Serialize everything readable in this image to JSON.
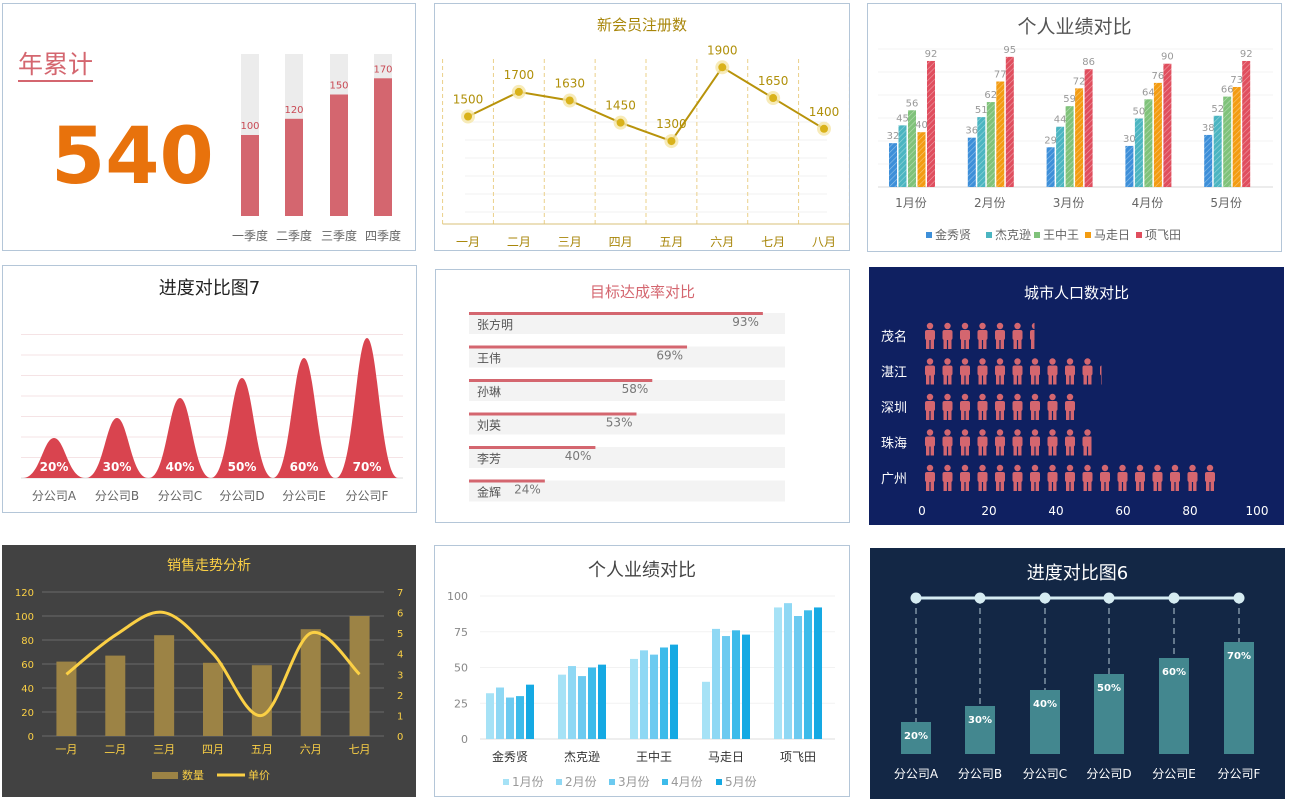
{
  "colors": {
    "dusty_red": "#d4666f",
    "orange_big": "#e8720c",
    "gold_line": "#b8930a",
    "gold_dot": "#d9b21a",
    "red_wave": "#d9444f",
    "navy_bg": "#0f2061",
    "dark_gray_bg": "#424242",
    "gold_bar": "#9c8345",
    "yellow_line": "#fbd045",
    "navy2_bg": "#132745",
    "teal_bar": "#43878f"
  },
  "charts": [
    {
      "id": "annual",
      "title": "年累计",
      "total": "540",
      "chart_data": {
        "type": "bar",
        "categories": [
          "一季度",
          "二季度",
          "三季度",
          "四季度"
        ],
        "values": [
          100,
          120,
          150,
          170
        ],
        "ylim": [
          0,
          200
        ]
      }
    },
    {
      "id": "members",
      "title": "新会员注册数",
      "chart_data": {
        "type": "line",
        "categories": [
          "一月",
          "二月",
          "三月",
          "四月",
          "五月",
          "六月",
          "七月",
          "八月"
        ],
        "values": [
          1500,
          1700,
          1630,
          1450,
          1300,
          1900,
          1650,
          1400
        ],
        "ylim": [
          0,
          2000
        ]
      }
    },
    {
      "id": "perf1",
      "title": "个人业绩对比",
      "chart_data": {
        "type": "bar",
        "categories": [
          "1月份",
          "2月份",
          "3月份",
          "4月份",
          "5月份"
        ],
        "series": [
          {
            "name": "金秀贤",
            "values": [
              32,
              36,
              29,
              30,
              38
            ],
            "color": "#3d8fd9"
          },
          {
            "name": "杰克逊",
            "values": [
              45,
              51,
              44,
              50,
              52
            ],
            "color": "#4bb5c1"
          },
          {
            "name": "王中王",
            "values": [
              56,
              62,
              59,
              64,
              66
            ],
            "color": "#7fc27a"
          },
          {
            "name": "马走日",
            "values": [
              40,
              77,
              72,
              76,
              73
            ],
            "color": "#f39c12"
          },
          {
            "name": "项飞田",
            "values": [
              92,
              95,
              86,
              90,
              92
            ],
            "color": "#e04e5e"
          }
        ],
        "ylim": [
          0,
          100
        ]
      }
    },
    {
      "id": "progress7",
      "title": "进度对比图7",
      "chart_data": {
        "type": "area",
        "categories": [
          "分公司A",
          "分公司B",
          "分公司C",
          "分公司D",
          "分公司E",
          "分公司F"
        ],
        "values": [
          20,
          30,
          40,
          50,
          60,
          70
        ],
        "labels": [
          "20%",
          "30%",
          "40%",
          "50%",
          "60%",
          "70%"
        ],
        "ylim": [
          0,
          75
        ]
      }
    },
    {
      "id": "target",
      "title": "目标达成率对比",
      "chart_data": {
        "type": "bar",
        "categories": [
          "张方明",
          "王伟",
          "孙琳",
          "刘英",
          "李芳",
          "金辉"
        ],
        "values": [
          93,
          69,
          58,
          53,
          40,
          24
        ],
        "labels": [
          "93%",
          "69%",
          "58%",
          "53%",
          "40%",
          "24%"
        ],
        "xlim": [
          0,
          100
        ]
      }
    },
    {
      "id": "city",
      "title": "城市人口数对比",
      "chart_data": {
        "type": "bar",
        "categories": [
          "茂名",
          "湛江",
          "深圳",
          "珠海",
          "广州"
        ],
        "values": [
          33,
          53,
          47,
          50,
          87
        ],
        "xticks": [
          "0",
          "20",
          "40",
          "60",
          "80",
          "100"
        ],
        "xlim": [
          0,
          100
        ]
      }
    },
    {
      "id": "sales",
      "title": "销售走势分析",
      "chart_data": {
        "type": "bar",
        "categories": [
          "一月",
          "二月",
          "三月",
          "四月",
          "五月",
          "六月",
          "七月"
        ],
        "series": [
          {
            "name": "数量",
            "values": [
              62,
              67,
              84,
              61,
              59,
              89,
              100
            ]
          },
          {
            "name": "单价",
            "values": [
              3,
              4.9,
              6,
              4,
              1,
              5,
              3
            ]
          }
        ],
        "yticks": [
          "0",
          "20",
          "40",
          "60",
          "80",
          "100",
          "120"
        ],
        "y2ticks": [
          "0",
          "1",
          "2",
          "3",
          "4",
          "5",
          "6",
          "7"
        ],
        "ylim": [
          0,
          120
        ],
        "y2lim": [
          0,
          7
        ]
      }
    },
    {
      "id": "perf2",
      "title": "个人业绩对比",
      "chart_data": {
        "type": "bar",
        "categories": [
          "金秀贤",
          "杰克逊",
          "王中王",
          "马走日",
          "项飞田"
        ],
        "series": [
          {
            "name": "1月份",
            "values": [
              32,
              45,
              56,
              40,
              92
            ],
            "color": "#a6e2f6"
          },
          {
            "name": "2月份",
            "values": [
              36,
              51,
              62,
              77,
              95
            ],
            "color": "#8fd8f4"
          },
          {
            "name": "3月份",
            "values": [
              29,
              44,
              59,
              72,
              86
            ],
            "color": "#6ccaf0"
          },
          {
            "name": "4月份",
            "values": [
              30,
              50,
              64,
              76,
              90
            ],
            "color": "#3dbbea"
          },
          {
            "name": "5月份",
            "values": [
              38,
              52,
              66,
              73,
              92
            ],
            "color": "#15a9e3"
          }
        ],
        "yticks": [
          "0",
          "25",
          "50",
          "75",
          "100"
        ],
        "ylim": [
          0,
          100
        ]
      }
    },
    {
      "id": "progress6",
      "title": "进度对比图6",
      "chart_data": {
        "type": "bar",
        "categories": [
          "分公司A",
          "分公司B",
          "分公司C",
          "分公司D",
          "分公司E",
          "分公司F"
        ],
        "values": [
          20,
          30,
          40,
          50,
          60,
          70
        ],
        "labels": [
          "20%",
          "30%",
          "40%",
          "50%",
          "60%",
          "70%"
        ],
        "ylim": [
          0,
          100
        ]
      }
    }
  ]
}
